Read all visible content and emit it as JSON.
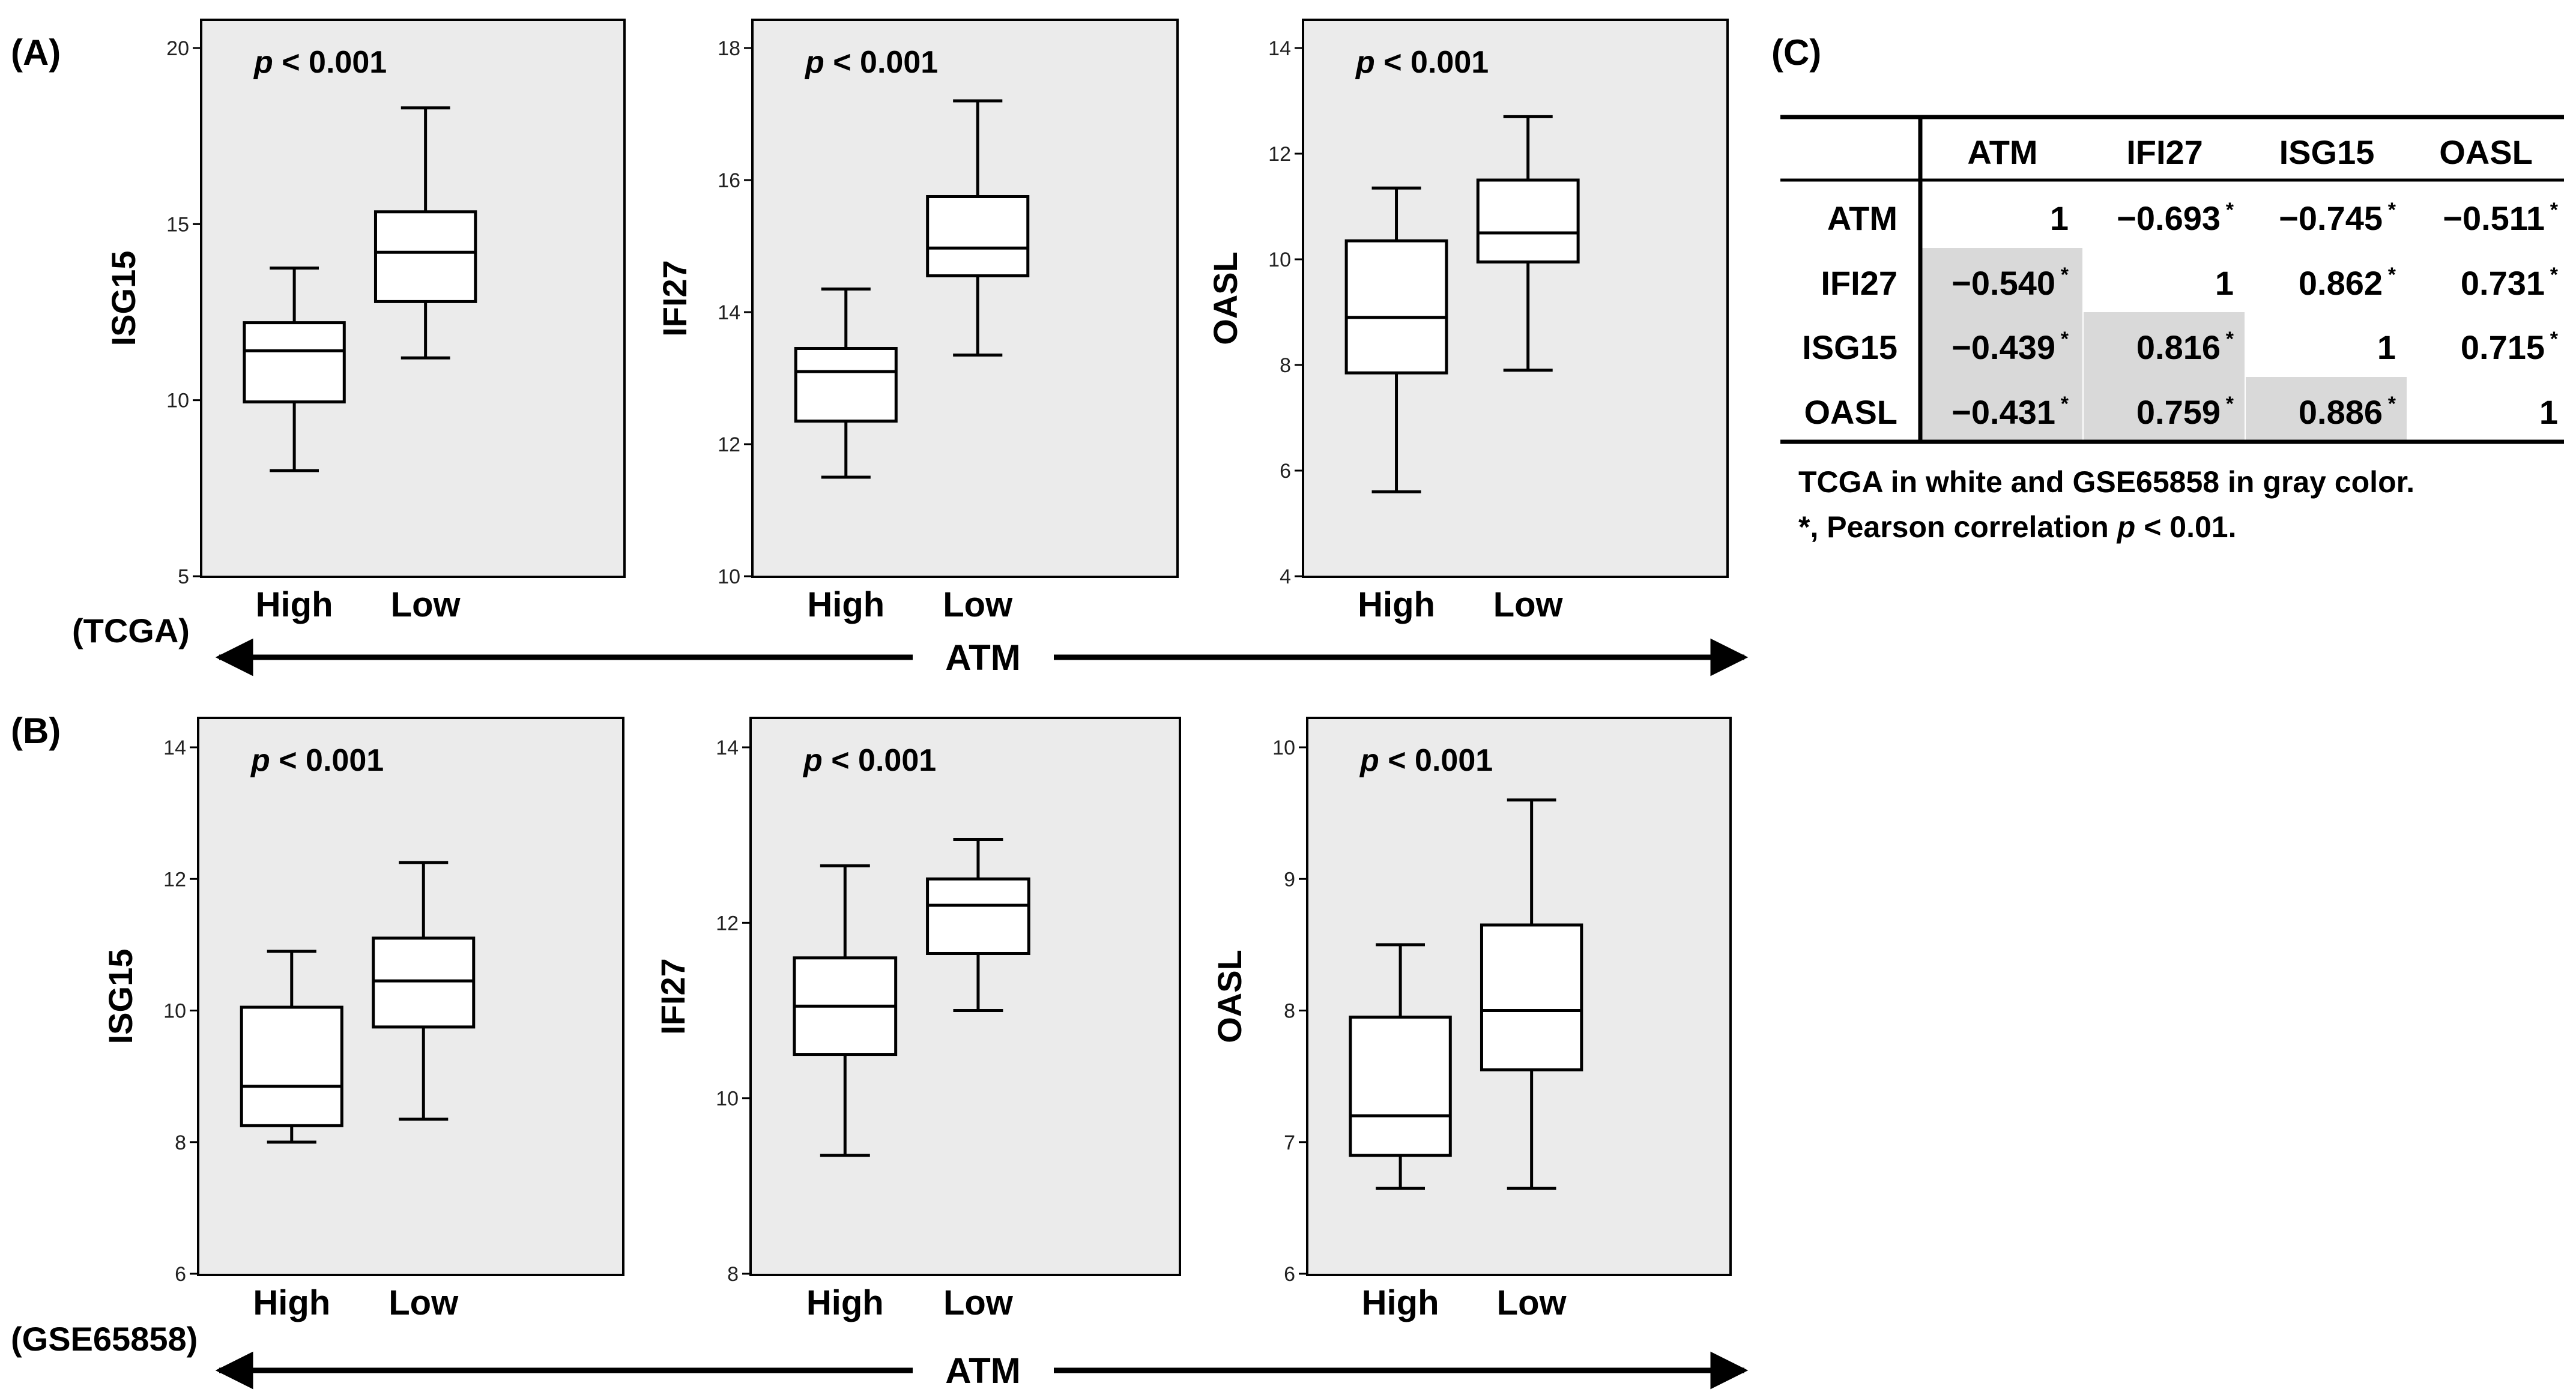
{
  "panels": {
    "A": {
      "label": "(A)",
      "dataset": "(TCGA)",
      "axis_label": "ATM"
    },
    "B": {
      "label": "(B)",
      "dataset": "(GSE65858)",
      "axis_label": "ATM"
    },
    "C": {
      "label": "(C)"
    }
  },
  "chart_data": [
    {
      "type": "box",
      "panel": "A",
      "ylabel": "ISG15",
      "ylim": [
        5,
        20
      ],
      "yticks": [
        5,
        10,
        15,
        20
      ],
      "annotation": "< 0.001",
      "annotation_prefix": "p",
      "categories": [
        "High",
        "Low"
      ],
      "boxes": [
        {
          "min": 8.0,
          "q1": 9.95,
          "median": 11.4,
          "q3": 12.2,
          "max": 13.75
        },
        {
          "min": 11.2,
          "q1": 12.8,
          "median": 14.2,
          "q3": 15.35,
          "max": 18.3
        }
      ]
    },
    {
      "type": "box",
      "panel": "A",
      "ylabel": "IFI27",
      "ylim": [
        10,
        18
      ],
      "yticks": [
        10,
        12,
        14,
        16,
        18
      ],
      "annotation": "< 0.001",
      "annotation_prefix": "p",
      "categories": [
        "High",
        "Low"
      ],
      "boxes": [
        {
          "min": 11.5,
          "q1": 12.35,
          "median": 13.1,
          "q3": 13.45,
          "max": 14.35
        },
        {
          "min": 13.35,
          "q1": 14.55,
          "median": 14.97,
          "q3": 15.75,
          "max": 17.2
        }
      ]
    },
    {
      "type": "box",
      "panel": "A",
      "ylabel": "OASL",
      "ylim": [
        4,
        14
      ],
      "yticks": [
        4,
        6,
        8,
        10,
        12,
        14
      ],
      "annotation": "< 0.001",
      "annotation_prefix": "p",
      "categories": [
        "High",
        "Low"
      ],
      "boxes": [
        {
          "min": 5.6,
          "q1": 7.85,
          "median": 8.9,
          "q3": 10.35,
          "max": 11.35
        },
        {
          "min": 7.9,
          "q1": 9.95,
          "median": 10.5,
          "q3": 11.5,
          "max": 12.7
        }
      ]
    },
    {
      "type": "box",
      "panel": "B",
      "ylabel": "ISG15",
      "ylim": [
        6,
        14
      ],
      "yticks": [
        6,
        8,
        10,
        12,
        14
      ],
      "annotation": "< 0.001",
      "annotation_prefix": "p",
      "categories": [
        "High",
        "Low"
      ],
      "boxes": [
        {
          "min": 8.0,
          "q1": 8.25,
          "median": 8.85,
          "q3": 10.05,
          "max": 10.9
        },
        {
          "min": 8.35,
          "q1": 9.75,
          "median": 10.45,
          "q3": 11.1,
          "max": 12.25
        }
      ]
    },
    {
      "type": "box",
      "panel": "B",
      "ylabel": "IFI27",
      "ylim": [
        8,
        14
      ],
      "yticks": [
        8,
        10,
        12,
        14
      ],
      "annotation": "< 0.001",
      "annotation_prefix": "p",
      "categories": [
        "High",
        "Low"
      ],
      "boxes": [
        {
          "min": 9.35,
          "q1": 10.5,
          "median": 11.05,
          "q3": 11.6,
          "max": 12.65
        },
        {
          "min": 11.0,
          "q1": 11.65,
          "median": 12.2,
          "q3": 12.5,
          "max": 12.95
        }
      ]
    },
    {
      "type": "box",
      "panel": "B",
      "ylabel": "OASL",
      "ylim": [
        6,
        10
      ],
      "yticks": [
        6,
        7,
        8,
        9,
        10
      ],
      "annotation": "< 0.001",
      "annotation_prefix": "p",
      "categories": [
        "High",
        "Low"
      ],
      "boxes": [
        {
          "min": 6.65,
          "q1": 6.9,
          "median": 7.2,
          "q3": 7.95,
          "max": 8.5
        },
        {
          "min": 6.65,
          "q1": 7.55,
          "median": 8.0,
          "q3": 8.65,
          "max": 9.6
        }
      ]
    },
    {
      "type": "table",
      "panel": "C",
      "columns": [
        "ATM",
        "IFI27",
        "ISG15",
        "OASL"
      ],
      "rows": [
        {
          "label": "ATM",
          "cells": [
            {
              "v": "1",
              "star": false,
              "gray": false
            },
            {
              "v": "−0.693",
              "star": true,
              "gray": false
            },
            {
              "v": "−0.745",
              "star": true,
              "gray": false
            },
            {
              "v": "−0.511",
              "star": true,
              "gray": false
            }
          ]
        },
        {
          "label": "IFI27",
          "cells": [
            {
              "v": "−0.540",
              "star": true,
              "gray": true
            },
            {
              "v": "1",
              "star": false,
              "gray": false
            },
            {
              "v": "0.862",
              "star": true,
              "gray": false
            },
            {
              "v": "0.731",
              "star": true,
              "gray": false
            }
          ]
        },
        {
          "label": "ISG15",
          "cells": [
            {
              "v": "−0.439",
              "star": true,
              "gray": true
            },
            {
              "v": "0.816",
              "star": true,
              "gray": true
            },
            {
              "v": "1",
              "star": false,
              "gray": false
            },
            {
              "v": "0.715",
              "star": true,
              "gray": false
            }
          ]
        },
        {
          "label": "OASL",
          "cells": [
            {
              "v": "−0.431",
              "star": true,
              "gray": true
            },
            {
              "v": "0.759",
              "star": true,
              "gray": true
            },
            {
              "v": "0.886",
              "star": true,
              "gray": true
            },
            {
              "v": "1",
              "star": false,
              "gray": false
            }
          ]
        }
      ],
      "star_symbol": "*",
      "note_line1": "TCGA in white and GSE65858 in gray color.",
      "note_line2_prefix": "*, Pearson correlation ",
      "note_line2_italic": "p",
      "note_line2_suffix": " < 0.01."
    }
  ],
  "colors": {
    "plot_bg": "#ebebeb",
    "box_fill": "#ffffff",
    "ink": "#000000",
    "table_gray": "#d9d9d9"
  }
}
